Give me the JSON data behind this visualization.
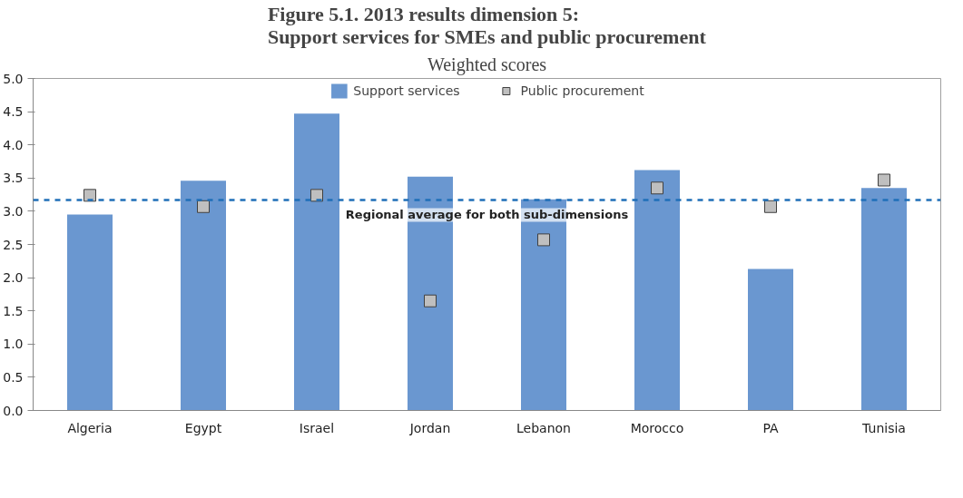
{
  "chart_data": {
    "type": "bar",
    "title": "Figure 5.1. 2013 results dimension 5:\nSupport services for SMEs and public procurement",
    "subtitle": "Weighted scores",
    "categories": [
      "Algeria",
      "Egypt",
      "Israel",
      "Jordan",
      "Lebanon",
      "Morocco",
      "PA",
      "Tunisia"
    ],
    "series": [
      {
        "name": "Support services",
        "color": "#6a97d0",
        "values": [
          2.95,
          3.46,
          4.47,
          3.52,
          3.18,
          3.62,
          2.13,
          3.35
        ]
      },
      {
        "name": "Public procurement",
        "type": "scatter",
        "color": "#bfbfbf",
        "marker": "square",
        "values": [
          3.24,
          3.07,
          3.24,
          1.65,
          2.57,
          3.35,
          3.07,
          3.47
        ]
      }
    ],
    "ylim": [
      0,
      5
    ],
    "yticks": [
      {
        "value": 0,
        "label": "0.0"
      },
      {
        "value": 0.5,
        "label": "0.5"
      },
      {
        "value": 1,
        "label": "1.0"
      },
      {
        "value": 1.5,
        "label": "1.5"
      },
      {
        "value": 2,
        "label": "2.0"
      },
      {
        "value": 2.5,
        "label": "2.5"
      },
      {
        "value": 3,
        "label": "3.0"
      },
      {
        "value": 3.5,
        "label": "3.5"
      },
      {
        "value": 4,
        "label": "4.0"
      },
      {
        "value": 4.5,
        "label": "4.5"
      },
      {
        "value": 5,
        "label": "5.0"
      }
    ],
    "ref_lines": [
      {
        "axis": "y",
        "value": 3.17,
        "label": "Regional average for both sub-dimensions",
        "color": "#1f6fb8",
        "line_style": "dashed"
      }
    ],
    "grid": false,
    "legend": "top"
  }
}
